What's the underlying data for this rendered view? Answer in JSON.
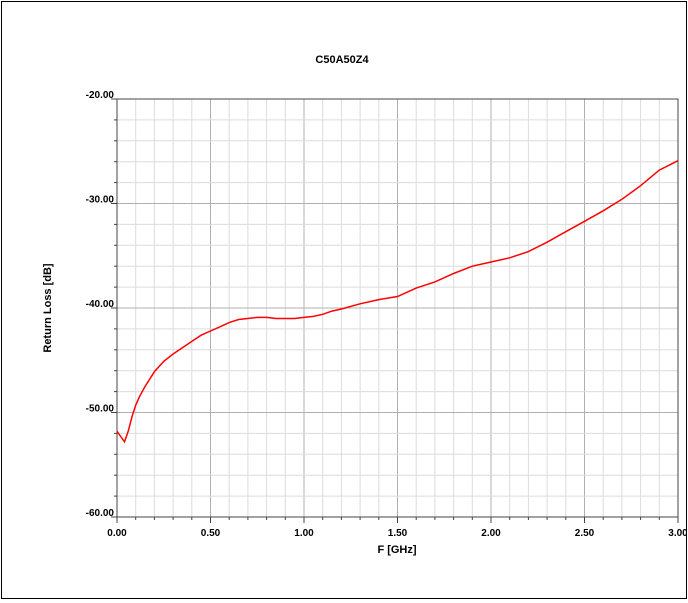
{
  "chart_data": {
    "type": "line",
    "title": "C50A50Z4",
    "xlabel": "F [GHz]",
    "ylabel": "Return Loss [dB]",
    "xlim": [
      0.0,
      3.0
    ],
    "ylim": [
      -60.0,
      -20.0
    ],
    "x_ticks": [
      "0.00",
      "0.50",
      "1.00",
      "1.50",
      "2.00",
      "2.50",
      "3.00"
    ],
    "y_ticks": [
      "-20.00",
      "-30.00",
      "-40.00",
      "-50.00",
      "-60.00"
    ],
    "grid": true,
    "series": [
      {
        "color": "#ff0000",
        "x": [
          0.0,
          0.02,
          0.04,
          0.06,
          0.08,
          0.1,
          0.12,
          0.15,
          0.2,
          0.25,
          0.3,
          0.35,
          0.4,
          0.45,
          0.5,
          0.55,
          0.6,
          0.65,
          0.7,
          0.75,
          0.8,
          0.85,
          0.9,
          0.95,
          1.0,
          1.05,
          1.1,
          1.15,
          1.2,
          1.3,
          1.4,
          1.5,
          1.6,
          1.7,
          1.8,
          1.9,
          2.0,
          2.1,
          2.2,
          2.3,
          2.4,
          2.5,
          2.6,
          2.7,
          2.8,
          2.9,
          3.0
        ],
        "y": [
          -51.8,
          -52.3,
          -52.8,
          -51.8,
          -50.4,
          -49.3,
          -48.5,
          -47.5,
          -46.1,
          -45.1,
          -44.4,
          -43.8,
          -43.2,
          -42.6,
          -42.2,
          -41.8,
          -41.4,
          -41.1,
          -41.0,
          -40.9,
          -40.9,
          -41.0,
          -41.0,
          -41.0,
          -40.9,
          -40.8,
          -40.6,
          -40.3,
          -40.1,
          -39.6,
          -39.2,
          -38.9,
          -38.1,
          -37.5,
          -36.7,
          -36.0,
          -35.6,
          -35.2,
          -34.6,
          -33.7,
          -32.7,
          -31.7,
          -30.7,
          -29.6,
          -28.3,
          -26.8,
          -25.9
        ]
      }
    ]
  }
}
